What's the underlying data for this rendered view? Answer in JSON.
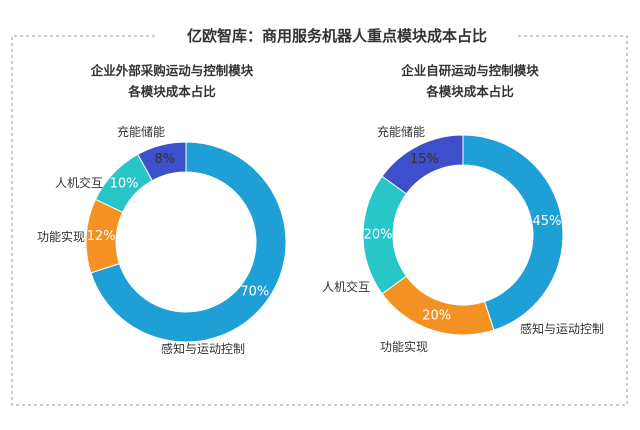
{
  "header": {
    "title": "亿欧智库：商用服务机器人重点模块成本占比"
  },
  "colors": {
    "frame": "#999999",
    "text": "#333333",
    "label_on_slice": "#ffffff",
    "label_on_slice_last": "#333333"
  },
  "chart_data": [
    {
      "type": "pie",
      "donut": true,
      "title_line1": "企业外部采购运动与控制模块",
      "title_line2": "各模块成本占比",
      "slices": [
        {
          "label": "感知与运动控制",
          "value": 70,
          "display": "70%",
          "color": "#1e9fd5"
        },
        {
          "label": "功能实现",
          "value": 12,
          "display": "12%",
          "color": "#f39223"
        },
        {
          "label": "人机交互",
          "value": 10,
          "display": "10%",
          "color": "#28c6c9"
        },
        {
          "label": "充能储能",
          "value": 8,
          "display": "8%",
          "color": "#3d4fca"
        }
      ]
    },
    {
      "type": "pie",
      "donut": true,
      "title_line1": "企业自研运动与控制模块",
      "title_line2": "各模块成本占比",
      "slices": [
        {
          "label": "感知与运动控制",
          "value": 45,
          "display": "45%",
          "color": "#1e9fd5"
        },
        {
          "label": "功能实现",
          "value": 20,
          "display": "20%",
          "color": "#f39223"
        },
        {
          "label": "人机交互",
          "value": 20,
          "display": "20%",
          "color": "#28c6c9"
        },
        {
          "label": "充能储能",
          "value": 15,
          "display": "15%",
          "color": "#3d4fca"
        }
      ]
    }
  ]
}
